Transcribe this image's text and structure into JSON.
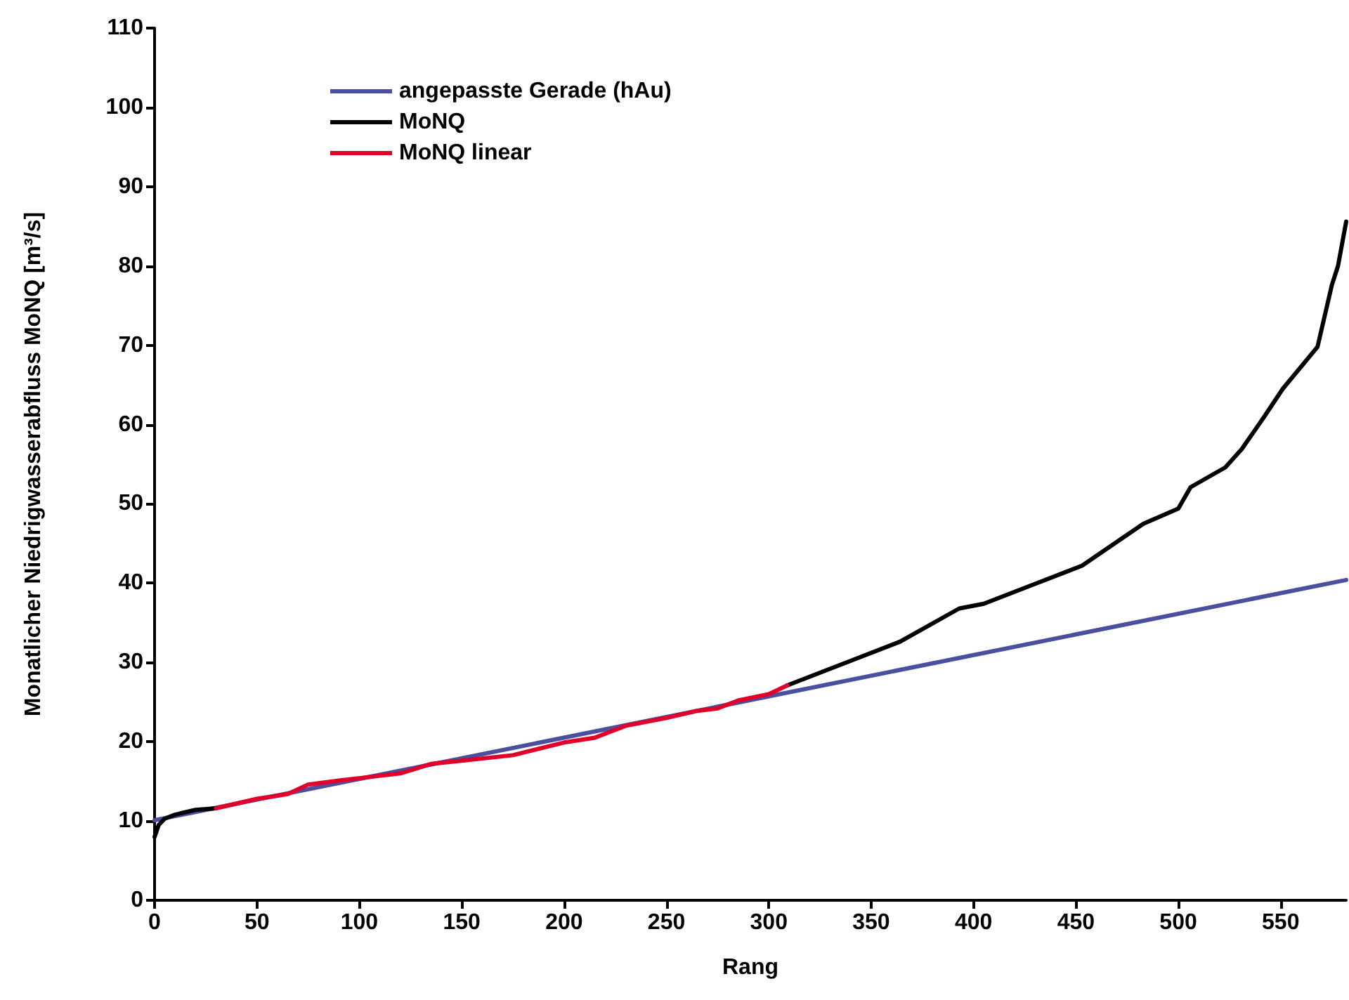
{
  "chart_data": {
    "type": "line",
    "xlabel": "Rang",
    "ylabel": "Monatlicher Niedrigwasserabfluss MoNQ [m³/s]",
    "xlim": [
      0,
      582
    ],
    "xticks": [
      0,
      50,
      100,
      150,
      200,
      250,
      300,
      350,
      400,
      450,
      500,
      550
    ],
    "ylim": [
      0,
      110
    ],
    "yticks": [
      0,
      10,
      20,
      30,
      40,
      50,
      60,
      70,
      80,
      90,
      100,
      110
    ],
    "grid": false,
    "legend": "top left",
    "marker": "none",
    "line_style": "solid",
    "series": [
      {
        "name": "angepasste Gerade (hAu)",
        "color": "#4a4f9e",
        "x": [
          0,
          582
        ],
        "values": [
          10.1,
          40.4
        ]
      },
      {
        "name": "MoNQ",
        "color": "#000000",
        "x": [
          0,
          2,
          5,
          10,
          20,
          30,
          50,
          65,
          75,
          90,
          100,
          120,
          135,
          150,
          175,
          200,
          215,
          230,
          250,
          265,
          275,
          285,
          300,
          309,
          336,
          364,
          393,
          405,
          428,
          453,
          483,
          500,
          506,
          523,
          531,
          542,
          551,
          568,
          575,
          578,
          582
        ],
        "values": [
          8.0,
          9.5,
          10.3,
          10.8,
          11.4,
          11.6,
          null,
          null,
          null,
          null,
          null,
          null,
          null,
          null,
          null,
          null,
          null,
          null,
          null,
          null,
          null,
          null,
          null,
          27.1,
          29.8,
          32.6,
          36.8,
          37.4,
          39.7,
          42.2,
          47.5,
          49.4,
          52.1,
          54.6,
          56.9,
          61.0,
          64.5,
          69.8,
          77.6,
          80.0,
          85.6
        ]
      },
      {
        "name": "MoNQ linear",
        "color": "#e0002a",
        "x": [
          30,
          50,
          65,
          75,
          90,
          100,
          120,
          135,
          150,
          175,
          200,
          215,
          230,
          250,
          265,
          275,
          285,
          300,
          309
        ],
        "values": [
          11.6,
          12.8,
          13.4,
          14.6,
          15.1,
          15.4,
          16.0,
          17.2,
          17.6,
          18.3,
          19.9,
          20.5,
          22.0,
          23.0,
          23.9,
          24.2,
          25.2,
          26.0,
          27.1
        ]
      }
    ]
  }
}
